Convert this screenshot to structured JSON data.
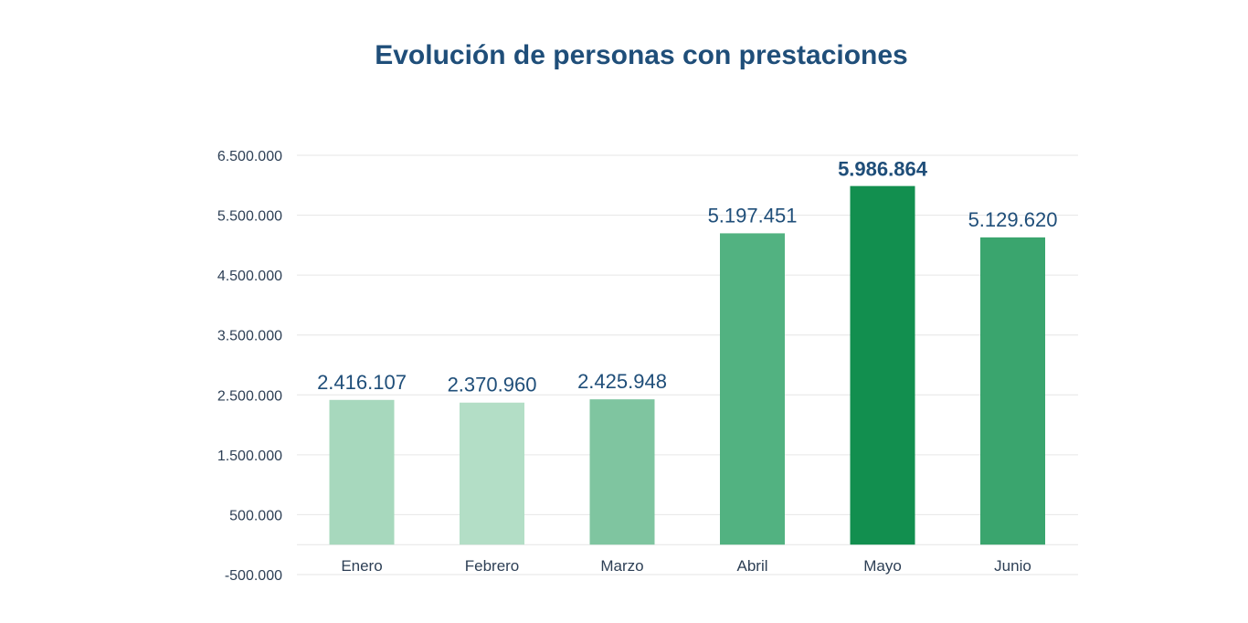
{
  "chart_data": {
    "type": "bar",
    "title": "Evolución de personas con prestaciones",
    "xlabel": "",
    "ylabel": "",
    "categories": [
      "Enero",
      "Febrero",
      "Marzo",
      "Abril",
      "Mayo",
      "Junio"
    ],
    "values": [
      2416107,
      2370960,
      2425948,
      5197451,
      5986864,
      5129620
    ],
    "value_labels": [
      "2.416.107",
      "2.370.960",
      "2.425.948",
      "5.197.451",
      "5.986.864",
      "5.129.620"
    ],
    "highlight_index": 4,
    "bar_colors": [
      "#a7d8bd",
      "#b3dec6",
      "#7fc5a0",
      "#52b281",
      "#128f4f",
      "#3aa56e"
    ],
    "ylim": [
      -500000,
      6500000
    ],
    "yticks": [
      6500000,
      5500000,
      4500000,
      3500000,
      2500000,
      1500000,
      500000,
      -500000
    ],
    "ytick_labels": [
      "6.500.000",
      "5.500.000",
      "4.500.000",
      "3.500.000",
      "2.500.000",
      "1.500.000",
      "500.000",
      "-500.000"
    ],
    "grid": true,
    "legend": "none"
  }
}
